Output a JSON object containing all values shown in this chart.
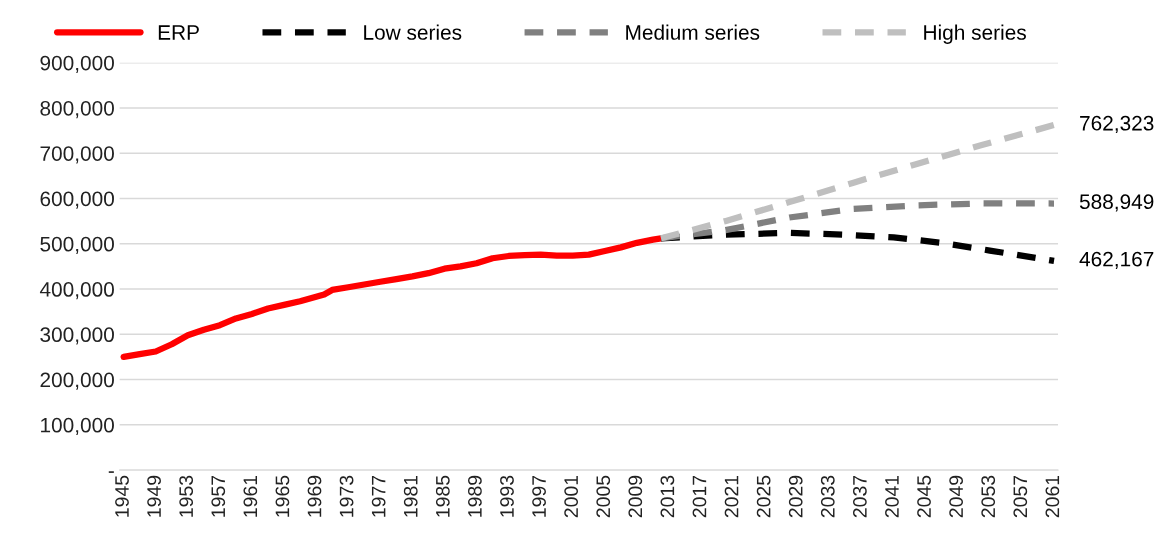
{
  "chart_data": {
    "type": "line",
    "xlim": [
      1944.5,
      2061.5
    ],
    "xticks": [
      1945,
      1949,
      1953,
      1957,
      1961,
      1965,
      1969,
      1973,
      1977,
      1981,
      1985,
      1989,
      1993,
      1997,
      2001,
      2005,
      2009,
      2013,
      2017,
      2021,
      2025,
      2029,
      2033,
      2037,
      2041,
      2045,
      2049,
      2053,
      2057,
      2061
    ],
    "ylim": [
      0,
      900000
    ],
    "yticks": [
      {
        "value": 0,
        "label": "-"
      },
      {
        "value": 100000,
        "label": "100,000"
      },
      {
        "value": 200000,
        "label": "200,000"
      },
      {
        "value": 300000,
        "label": "300,000"
      },
      {
        "value": 400000,
        "label": "400,000"
      },
      {
        "value": 500000,
        "label": "500,000"
      },
      {
        "value": 600000,
        "label": "600,000"
      },
      {
        "value": 700000,
        "label": "700,000"
      },
      {
        "value": 800000,
        "label": "800,000"
      },
      {
        "value": 900000,
        "label": "900,000"
      }
    ],
    "grid": "y",
    "legend": "top",
    "marker": "none",
    "series": [
      {
        "name": "ERP",
        "color": "#ff0000",
        "line_style": "solid",
        "x": [
          1945,
          1947,
          1949,
          1951,
          1953,
          1955,
          1957,
          1959,
          1961,
          1963,
          1965,
          1967,
          1969,
          1970,
          1971,
          1973,
          1975,
          1977,
          1979,
          1981,
          1983,
          1985,
          1987,
          1989,
          1991,
          1993,
          1995,
          1997,
          1999,
          2001,
          2003,
          2005,
          2007,
          2009,
          2011,
          2012
        ],
        "values": [
          250000,
          256000,
          262000,
          278000,
          298000,
          310000,
          320000,
          335000,
          345000,
          357000,
          365000,
          373000,
          383000,
          388000,
          398000,
          404000,
          410000,
          416000,
          422000,
          428000,
          435000,
          445000,
          450000,
          457000,
          468000,
          473000,
          475000,
          476000,
          474000,
          474000,
          476000,
          484000,
          492000,
          502000,
          509000,
          512000
        ]
      },
      {
        "name": "Low series",
        "color": "#000000",
        "line_style": "dashed",
        "x": [
          2012,
          2020,
          2028,
          2035,
          2041,
          2047,
          2053,
          2061
        ],
        "values": [
          512000,
          520000,
          524000,
          520000,
          514000,
          502000,
          485000,
          462167
        ],
        "value_labels": [
          null,
          null,
          null,
          null,
          null,
          null,
          null,
          "462,167"
        ]
      },
      {
        "name": "Medium series",
        "color": "#808080",
        "line_style": "dashed",
        "x": [
          2012,
          2020,
          2028,
          2036,
          2044,
          2052,
          2061
        ],
        "values": [
          512000,
          530000,
          558000,
          577000,
          585000,
          589000,
          588949
        ],
        "value_labels": [
          null,
          null,
          null,
          null,
          null,
          null,
          "588,949"
        ]
      },
      {
        "name": "High series",
        "color": "#bfbfbf",
        "line_style": "dashed",
        "x": [
          2012,
          2020,
          2028,
          2036,
          2044,
          2052,
          2061
        ],
        "values": [
          512000,
          550000,
          592000,
          635000,
          677000,
          718000,
          762323
        ],
        "value_labels": [
          null,
          null,
          null,
          null,
          null,
          null,
          "762,323"
        ]
      }
    ]
  }
}
